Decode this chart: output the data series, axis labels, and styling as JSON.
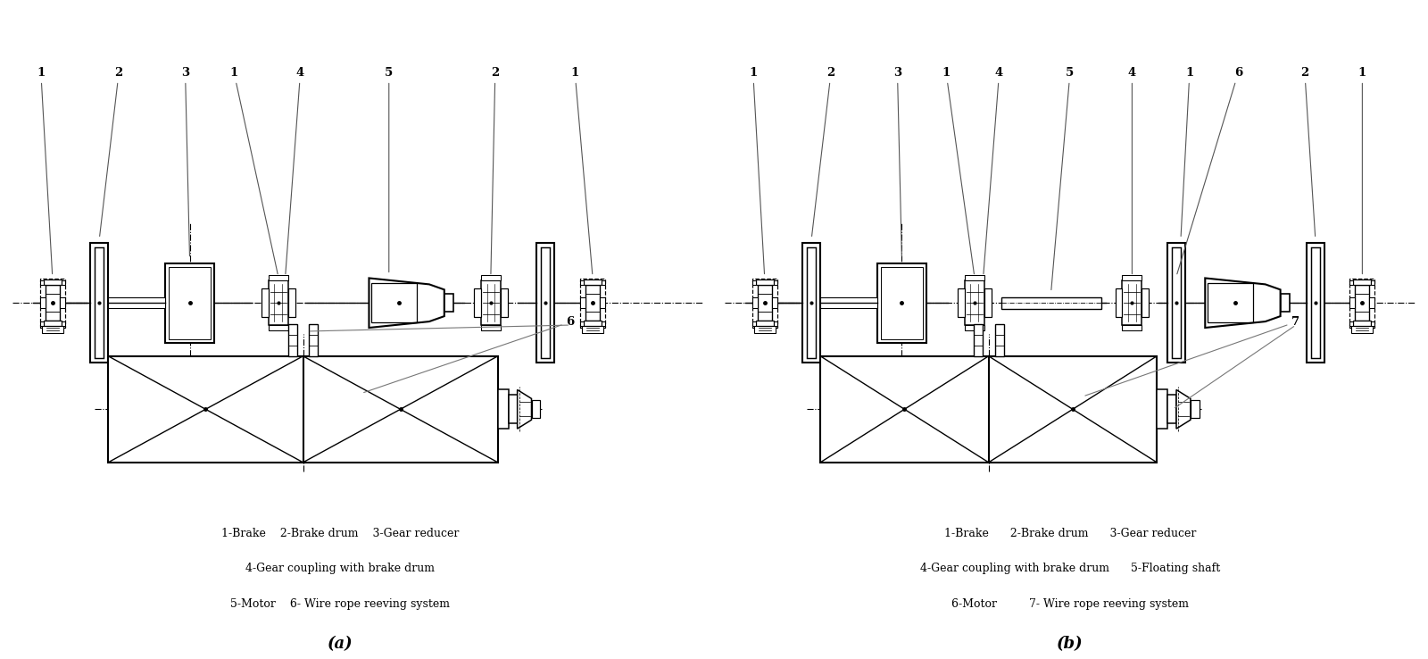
{
  "background_color": "#ffffff",
  "line_color": "#000000",
  "label_a": "(a)",
  "label_b": "(b)",
  "legend_a_line1": "1-Brake    2-Brake drum    3-Gear reducer",
  "legend_a_line2": "4-Gear coupling with brake drum",
  "legend_a_line3": "5-Motor    6- Wire rope reeving system",
  "legend_b_line1": "1-Brake      2-Brake drum      3-Gear reducer",
  "legend_b_line2": "4-Gear coupling with brake drum      5-Floating shaft",
  "legend_b_line3": "6-Motor         7- Wire rope reeving system",
  "fig_width": 16.0,
  "fig_height": 7.38
}
